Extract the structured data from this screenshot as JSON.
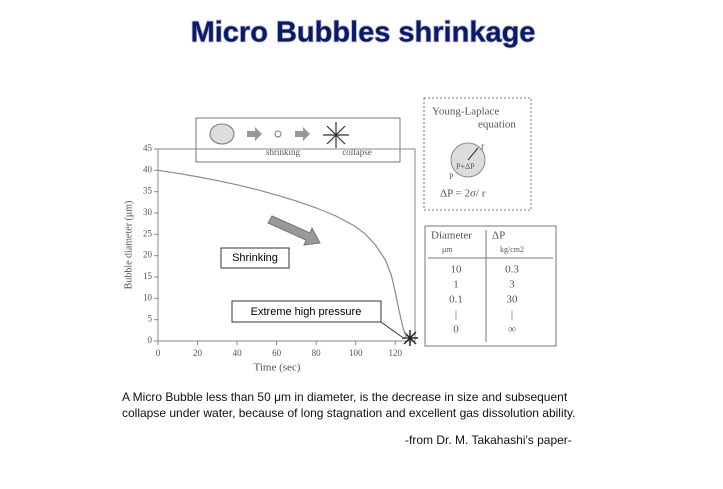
{
  "title": "Micro Bubbles shrinkage",
  "chart_data": {
    "type": "line",
    "xlabel": "Time (sec)",
    "ylabel": "Bubble diameter (μm)",
    "x": [
      0,
      10,
      20,
      30,
      40,
      50,
      60,
      70,
      80,
      90,
      100,
      105,
      110,
      115,
      118,
      120,
      122,
      124,
      126
    ],
    "series": [
      {
        "color": "#8a8a8a",
        "values": [
          40,
          39.3,
          38.5,
          37.6,
          36.6,
          35.5,
          34.2,
          32.8,
          31.2,
          29.3,
          26.8,
          25,
          22.5,
          19,
          15.5,
          11.5,
          7,
          3,
          0.5
        ]
      }
    ],
    "xlim": [
      0,
      130
    ],
    "xticks": [
      0,
      20,
      40,
      60,
      80,
      100,
      120
    ],
    "ylim": [
      0,
      45
    ],
    "yticks": [
      0,
      5,
      10,
      15,
      20,
      25,
      30,
      35,
      40,
      45
    ],
    "annotations": [
      "Shrinking",
      "Extreme high pressure"
    ]
  },
  "diagram": {
    "labels": [
      "shrinking",
      "collapse"
    ]
  },
  "young_laplace": {
    "title": "Young-Laplace",
    "subtitle": "equation",
    "radius": "r",
    "inner": "P+ΔP",
    "outer": "P",
    "formula": "ΔP = 2σ/ r"
  },
  "table": {
    "headers": [
      "Diameter",
      "ΔP"
    ],
    "units": [
      "μm",
      "kg/cm2"
    ],
    "rows": [
      [
        "10",
        "0.3"
      ],
      [
        "1",
        "3"
      ],
      [
        "0.1",
        "30"
      ],
      [
        "|",
        "|"
      ],
      [
        "0",
        "∞"
      ]
    ]
  },
  "caption": [
    "A Micro Bubble less than 50 μm in diameter, is the decrease in size and subsequent",
    "collapse under water, because of long stagnation and excellent gas dissolution ability."
  ],
  "source": "-from Dr. M. Takahashi's paper-"
}
